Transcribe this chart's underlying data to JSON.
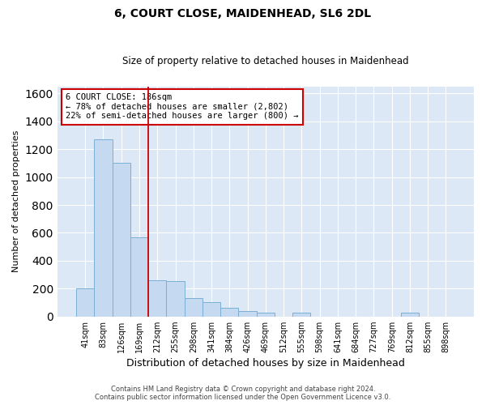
{
  "title1": "6, COURT CLOSE, MAIDENHEAD, SL6 2DL",
  "title2": "Size of property relative to detached houses in Maidenhead",
  "xlabel": "Distribution of detached houses by size in Maidenhead",
  "ylabel": "Number of detached properties",
  "bar_color": "#c5d9f0",
  "bar_edge_color": "#7aafd4",
  "background_color": "#dce8f5",
  "grid_color": "#ffffff",
  "vline_color": "#cc0000",
  "vline_x": 3.5,
  "annotation_text": "6 COURT CLOSE: 186sqm\n← 78% of detached houses are smaller (2,802)\n22% of semi-detached houses are larger (800) →",
  "annotation_box_color": "#cc0000",
  "ylim": [
    0,
    1650
  ],
  "yticks": [
    0,
    200,
    400,
    600,
    800,
    1000,
    1200,
    1400,
    1600
  ],
  "categories": [
    "41sqm",
    "83sqm",
    "126sqm",
    "169sqm",
    "212sqm",
    "255sqm",
    "298sqm",
    "341sqm",
    "384sqm",
    "426sqm",
    "469sqm",
    "512sqm",
    "555sqm",
    "598sqm",
    "641sqm",
    "684sqm",
    "727sqm",
    "769sqm",
    "812sqm",
    "855sqm",
    "898sqm"
  ],
  "values": [
    200,
    1270,
    1100,
    570,
    260,
    255,
    130,
    105,
    60,
    40,
    25,
    0,
    25,
    0,
    0,
    0,
    0,
    0,
    25,
    0,
    0
  ],
  "footer1": "Contains HM Land Registry data © Crown copyright and database right 2024.",
  "footer2": "Contains public sector information licensed under the Open Government Licence v3.0."
}
